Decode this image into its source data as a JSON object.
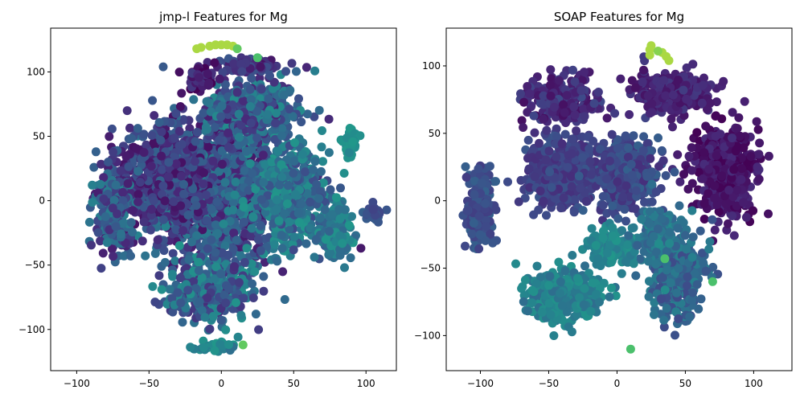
{
  "chart_data": [
    {
      "type": "scatter",
      "title": "jmp-l Features for Mg",
      "xlabel": "",
      "ylabel": "",
      "xlim": [
        -118,
        121
      ],
      "ylim": [
        -132,
        134
      ],
      "xticks": [
        -100,
        -50,
        0,
        50,
        100
      ],
      "yticks": [
        -100,
        -50,
        0,
        50,
        100
      ],
      "xtick_labels": [
        "−100",
        "−50",
        "0",
        "50",
        "100"
      ],
      "ytick_labels": [
        "−100",
        "−50",
        "0",
        "50",
        "100"
      ],
      "grid": false,
      "legend": "none",
      "colormap": "viridis",
      "seed": 11,
      "clusters": [
        {
          "x": -5,
          "y": 5,
          "sx": 40,
          "sy": 48,
          "w": 0.34,
          "c": [
            0.05,
            0.5
          ]
        },
        {
          "x": -40,
          "y": 20,
          "sx": 30,
          "sy": 35,
          "w": 0.14,
          "c": [
            0.05,
            0.35
          ]
        },
        {
          "x": 45,
          "y": 5,
          "sx": 28,
          "sy": 38,
          "w": 0.14,
          "c": [
            0.25,
            0.6
          ]
        },
        {
          "x": -10,
          "y": -70,
          "sx": 28,
          "sy": 22,
          "w": 0.1,
          "c": [
            0.15,
            0.58
          ]
        },
        {
          "x": 20,
          "y": 70,
          "sx": 30,
          "sy": 22,
          "w": 0.1,
          "c": [
            0.1,
            0.55
          ]
        },
        {
          "x": -75,
          "y": -10,
          "sx": 12,
          "sy": 30,
          "w": 0.06,
          "c": [
            0.1,
            0.5
          ]
        },
        {
          "x": 80,
          "y": -25,
          "sx": 10,
          "sy": 20,
          "w": 0.04,
          "c": [
            0.35,
            0.6
          ]
        },
        {
          "x": 20,
          "y": 105,
          "sx": 18,
          "sy": 5,
          "w": 0.03,
          "c": [
            0.05,
            0.3
          ]
        },
        {
          "x": -15,
          "y": 95,
          "sx": 10,
          "sy": 8,
          "w": 0.02,
          "c": [
            0.0,
            0.2
          ]
        },
        {
          "x": 90,
          "y": 45,
          "sx": 5,
          "sy": 10,
          "w": 0.01,
          "c": [
            0.5,
            0.6
          ]
        },
        {
          "x": 105,
          "y": -10,
          "sx": 5,
          "sy": 6,
          "w": 0.01,
          "c": [
            0.2,
            0.35
          ]
        },
        {
          "x": -5,
          "y": -113,
          "sx": 14,
          "sy": 4,
          "w": 0.01,
          "c": [
            0.4,
            0.6
          ]
        }
      ],
      "points_total": 3600,
      "extra_points": [
        {
          "x": -8,
          "y": 120,
          "c": 0.93
        },
        {
          "x": -4,
          "y": 121,
          "c": 0.93
        },
        {
          "x": 0,
          "y": 121,
          "c": 0.93
        },
        {
          "x": 4,
          "y": 121,
          "c": 0.93
        },
        {
          "x": -14,
          "y": 119,
          "c": 0.93
        },
        {
          "x": 8,
          "y": 120,
          "c": 0.93
        },
        {
          "x": -17,
          "y": 118,
          "c": 0.93
        },
        {
          "x": 11,
          "y": 118,
          "c": 0.85
        },
        {
          "x": 25,
          "y": 111,
          "c": 0.8
        },
        {
          "x": 15,
          "y": -112,
          "c": 0.85
        }
      ]
    },
    {
      "type": "scatter",
      "title": "SOAP Features for Mg",
      "xlabel": "",
      "ylabel": "",
      "xlim": [
        -125,
        128
      ],
      "ylim": [
        -126,
        128
      ],
      "xticks": [
        -100,
        -50,
        0,
        50,
        100
      ],
      "yticks": [
        -100,
        -50,
        0,
        50,
        100
      ],
      "xtick_labels": [
        "−100",
        "−50",
        "0",
        "50",
        "100"
      ],
      "ytick_labels": [
        "−100",
        "−50",
        "0",
        "50",
        "100"
      ],
      "grid": false,
      "legend": "none",
      "colormap": "viridis",
      "seed": 23,
      "clusters": [
        {
          "x": -40,
          "y": 20,
          "sx": 20,
          "sy": 22,
          "w": 0.18,
          "c": [
            0.15,
            0.3
          ]
        },
        {
          "x": 5,
          "y": 20,
          "sx": 20,
          "sy": 25,
          "w": 0.14,
          "c": [
            0.15,
            0.35
          ]
        },
        {
          "x": 80,
          "y": 20,
          "sx": 20,
          "sy": 30,
          "w": 0.14,
          "c": [
            0.0,
            0.15
          ]
        },
        {
          "x": 40,
          "y": 80,
          "sx": 25,
          "sy": 15,
          "w": 0.09,
          "c": [
            0.05,
            0.2
          ]
        },
        {
          "x": -40,
          "y": 75,
          "sx": 25,
          "sy": 15,
          "w": 0.08,
          "c": [
            0.05,
            0.25
          ]
        },
        {
          "x": -40,
          "y": -70,
          "sx": 25,
          "sy": 18,
          "w": 0.1,
          "c": [
            0.4,
            0.58
          ]
        },
        {
          "x": 45,
          "y": -55,
          "sx": 18,
          "sy": 28,
          "w": 0.12,
          "c": [
            0.25,
            0.5
          ]
        },
        {
          "x": -5,
          "y": -35,
          "sx": 18,
          "sy": 12,
          "w": 0.05,
          "c": [
            0.45,
            0.6
          ]
        },
        {
          "x": -100,
          "y": -10,
          "sx": 10,
          "sy": 25,
          "w": 0.06,
          "c": [
            0.2,
            0.35
          ]
        },
        {
          "x": 30,
          "y": -20,
          "sx": 15,
          "sy": 20,
          "w": 0.04,
          "c": [
            0.35,
            0.55
          ]
        }
      ],
      "points_total": 3100,
      "extra_points": [
        {
          "x": 24,
          "y": 112,
          "c": 0.93
        },
        {
          "x": 24,
          "y": 108,
          "c": 0.93
        },
        {
          "x": 25,
          "y": 115,
          "c": 0.93
        },
        {
          "x": 33,
          "y": 110,
          "c": 0.93
        },
        {
          "x": 36,
          "y": 107,
          "c": 0.93
        },
        {
          "x": 38,
          "y": 104,
          "c": 0.93
        },
        {
          "x": 30,
          "y": 111,
          "c": 0.9
        },
        {
          "x": 35,
          "y": -43,
          "c": 0.8
        },
        {
          "x": 70,
          "y": -60,
          "c": 0.8
        },
        {
          "x": 10,
          "y": -110,
          "c": 0.8
        }
      ]
    }
  ]
}
